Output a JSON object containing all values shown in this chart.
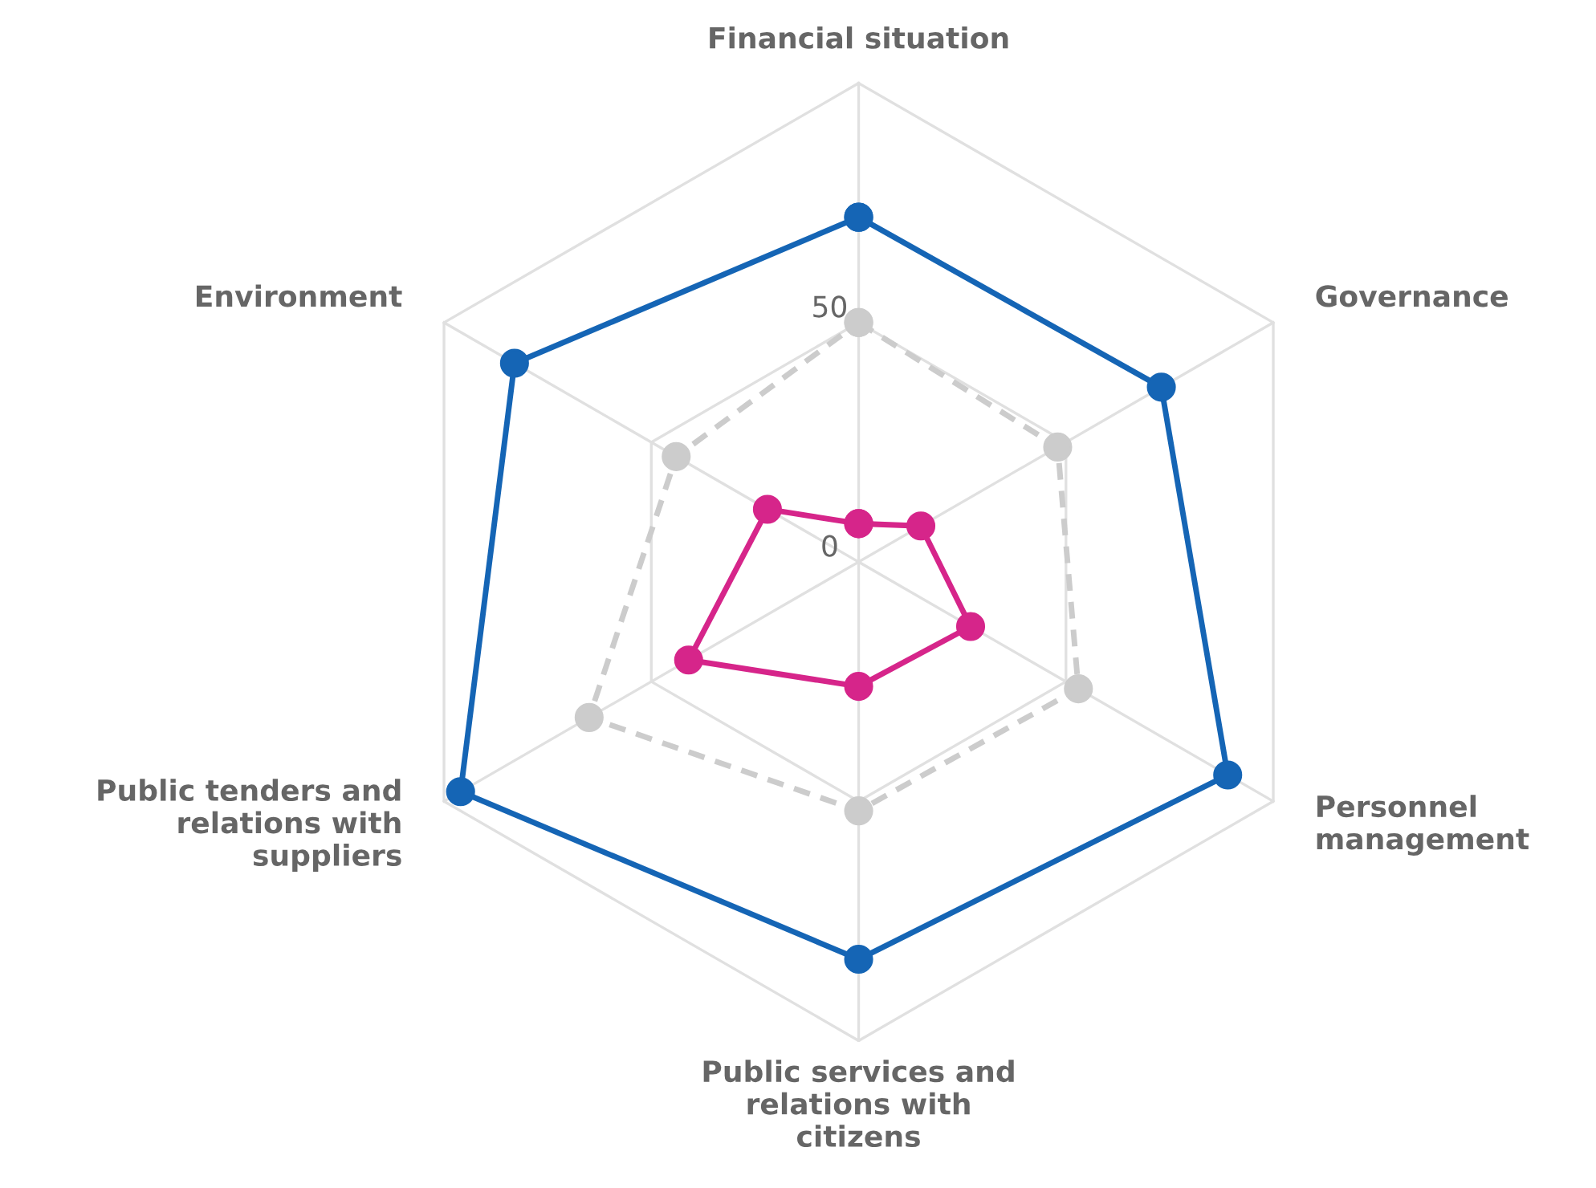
{
  "chart_data": {
    "type": "radar",
    "categories": [
      "Financial situation",
      "Governance",
      "Personnel\nmanagement",
      "Public services and\nrelations with\ncitizens",
      "Public tenders and\nrelations with\nsuppliers",
      "Environment"
    ],
    "series": [
      {
        "color": "#1565b5",
        "line_style": "solid",
        "values": [
          72,
          73,
          89,
          83,
          96,
          83
        ]
      },
      {
        "color": "#cccccc",
        "line_style": "dashed",
        "values": [
          50,
          48,
          53,
          52,
          65,
          44
        ]
      },
      {
        "color": "#d6258a",
        "line_style": "solid",
        "values": [
          8,
          15,
          27,
          26,
          41,
          22
        ]
      }
    ],
    "ylim": [
      0,
      100
    ],
    "yticks": [
      0,
      50
    ],
    "grid": true,
    "marker": "circle"
  }
}
